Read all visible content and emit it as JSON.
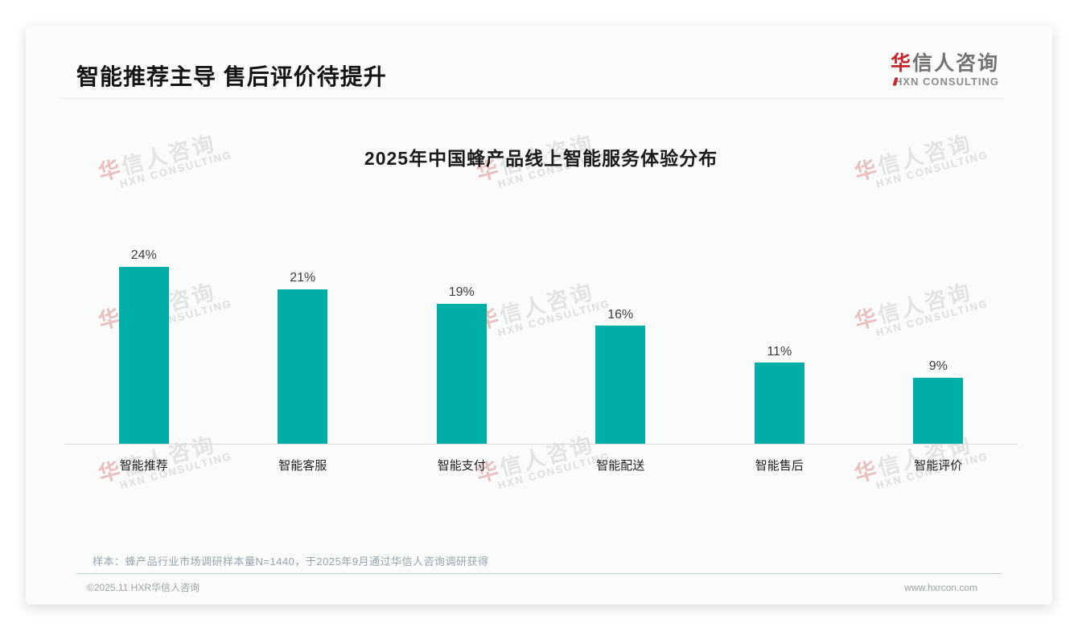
{
  "header": {
    "title": "智能推荐主导 售后评价待提升"
  },
  "logo": {
    "cn_first": "华",
    "cn_rest": "信人咨询",
    "en": "HXN CONSULTING",
    "accent_color": "#c1272d"
  },
  "watermark": {
    "cn_first": "华",
    "cn_rest": "信人咨询",
    "en": "HXN CONSULTING"
  },
  "chart_data": {
    "type": "bar",
    "title": "2025年中国蜂产品线上智能服务体验分布",
    "categories": [
      "智能推荐",
      "智能客服",
      "智能支付",
      "智能配送",
      "智能售后",
      "智能评价"
    ],
    "values": [
      24,
      21,
      19,
      16,
      11,
      9
    ],
    "value_labels": [
      "24%",
      "21%",
      "19%",
      "16%",
      "11%",
      "9%"
    ],
    "unit": "%",
    "bar_color": "#00aea8",
    "ylim": [
      0,
      24
    ],
    "grid": false,
    "legend": false,
    "value_labels_position": "above-bars",
    "axis_line_only": "bottom"
  },
  "footnote": "样本：蜂产品行业市场调研样本量N=1440，于2025年9月通过华信人咨询调研获得",
  "footer": {
    "copyright": "©2025.11 HXR华信人咨询",
    "website": "www.hxrcon.com"
  }
}
